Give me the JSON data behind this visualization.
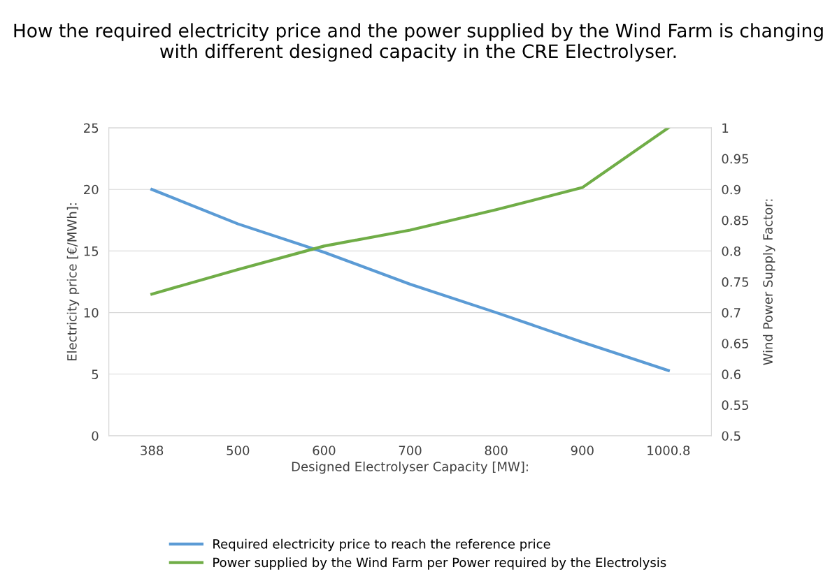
{
  "chart_data": {
    "type": "line",
    "title": "How the required electricity price and the power supplied by the Wind Farm is changing with different designed capacity in the CRE Electrolyser.",
    "xlabel": "Designed Electrolyser Capacity [MW]:",
    "ylabel": "Electricity price [€/MWh]:",
    "y2label": "Wind Power Supply Factor:",
    "categories": [
      "388",
      "500",
      "600",
      "700",
      "800",
      "900",
      "1000.8"
    ],
    "series": [
      {
        "name": "Required electricity price to reach the reference price",
        "color": "#5b9bd5",
        "values": [
          20,
          17.2,
          14.9,
          12.3,
          10,
          7.6,
          5.3
        ]
      },
      {
        "name": "Power supplied by the Wind Farm per Power required by the Electrolysis",
        "color": "#70ad47",
        "axis": "y2",
        "values": [
          0.73,
          0.77,
          0.808,
          0.834,
          0.867,
          0.903,
          1.0
        ]
      }
    ],
    "ylim": [
      0,
      25
    ],
    "yticks": [
      0,
      5,
      10,
      15,
      20,
      25
    ],
    "y2lim": [
      0.5,
      1
    ],
    "y2ticks": [
      0.5,
      0.55,
      0.6,
      0.65,
      0.7,
      0.75,
      0.8,
      0.85,
      0.9,
      0.95,
      1
    ],
    "grid": "y",
    "legend": "bottom",
    "marker": "none",
    "line_style": "solid"
  }
}
